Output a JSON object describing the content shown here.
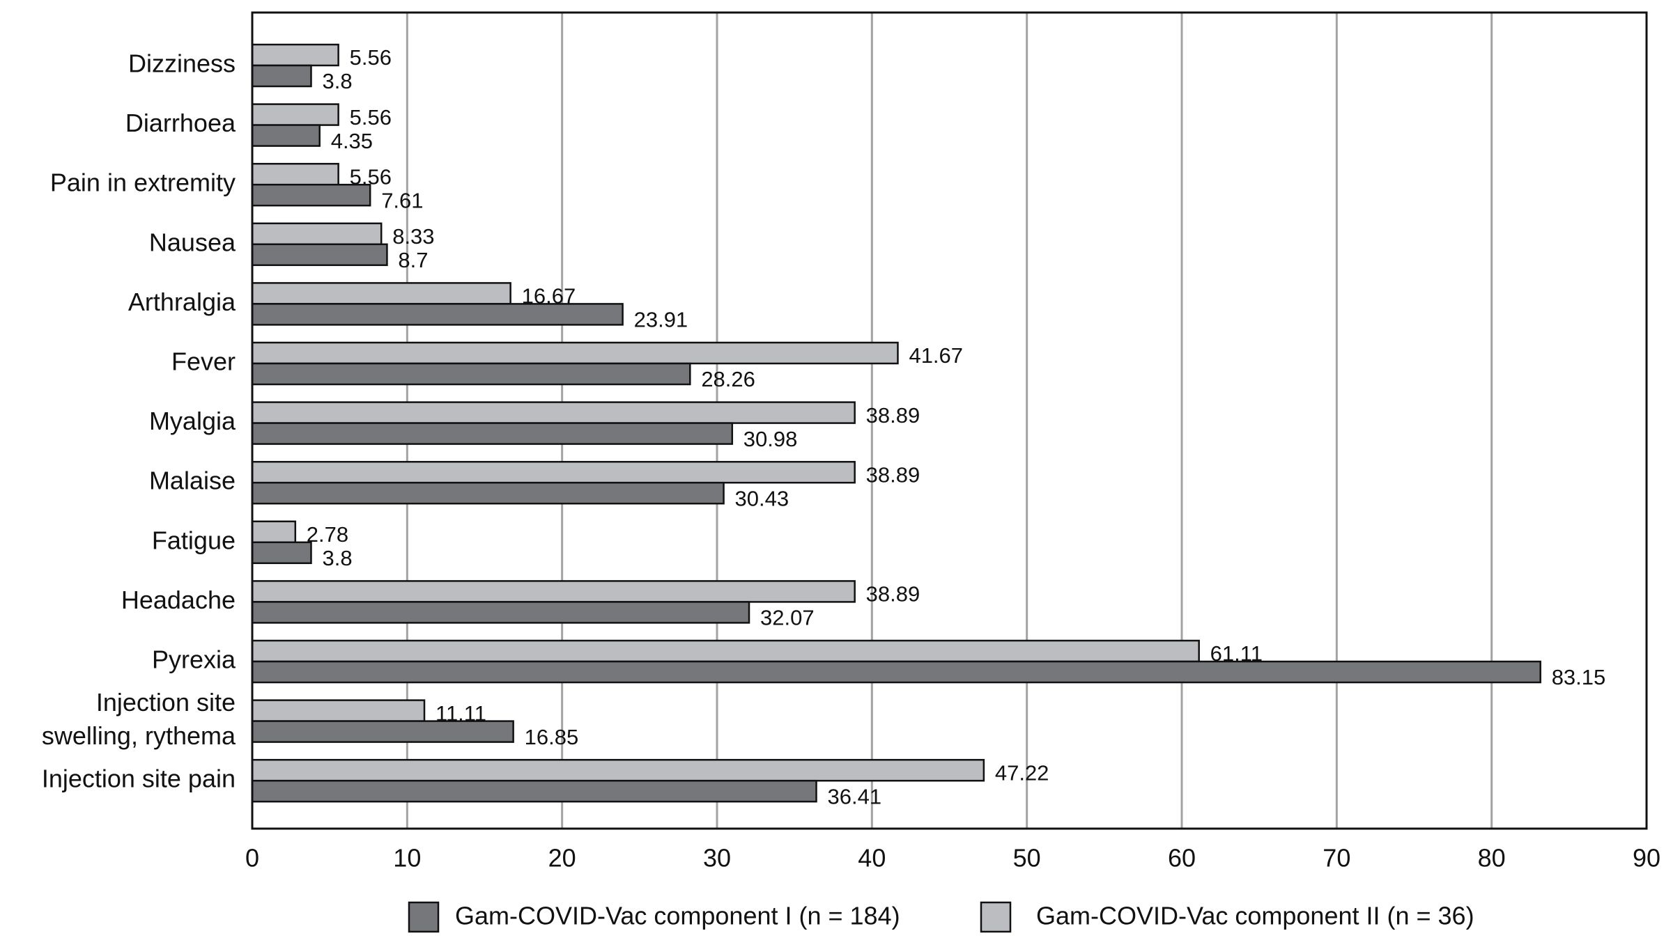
{
  "chart_data": {
    "type": "bar",
    "orientation": "horizontal",
    "categories": [
      "Dizziness",
      "Diarrhoea",
      "Pain in extremity",
      "Nausea",
      "Arthralgia",
      "Fever",
      "Myalgia",
      "Malaise",
      "Fatigue",
      "Headache",
      "Pyrexia",
      [
        "Injection site",
        "swelling, rythema"
      ],
      "Injection site pain"
    ],
    "series": [
      {
        "name": "Gam-COVID-Vac component II (n = 36)",
        "color": "#bcbdc0",
        "position": "upper",
        "values": [
          5.56,
          5.56,
          5.56,
          8.33,
          16.67,
          41.67,
          38.89,
          38.89,
          2.78,
          38.89,
          61.11,
          11.11,
          47.22
        ],
        "labels": [
          "5.56",
          "5.56",
          "5.56",
          "8.33",
          "16.67",
          "41.67",
          "38.89",
          "38.89",
          "2.78",
          "38.89",
          "61.11",
          "11.11",
          "47.22"
        ]
      },
      {
        "name": "Gam-COVID-Vac component I (n = 184)",
        "color": "#76777b",
        "position": "lower",
        "values": [
          3.8,
          4.35,
          7.61,
          8.7,
          23.91,
          28.26,
          30.98,
          30.43,
          3.8,
          32.07,
          83.15,
          16.85,
          36.41
        ],
        "labels": [
          "3.8",
          "4.35",
          "7.61",
          "8.7",
          "23.91",
          "28.26",
          "30.98",
          "30.43",
          "3.8",
          "32.07",
          "83.15",
          "16.85",
          "36.41"
        ]
      }
    ],
    "xlim": [
      0,
      90
    ],
    "xticks": [
      0,
      10,
      20,
      30,
      40,
      50,
      60,
      70,
      80,
      90
    ],
    "title": "",
    "xlabel": "",
    "ylabel": "",
    "grid": "vertical",
    "legend": {
      "placement": "bottom",
      "entries": [
        {
          "label": "Gam-COVID-Vac component I (n = 184)",
          "color": "#76777b"
        },
        {
          "label": "Gam-COVID-Vac component II (n = 36)",
          "color": "#bcbdc0"
        }
      ]
    }
  }
}
